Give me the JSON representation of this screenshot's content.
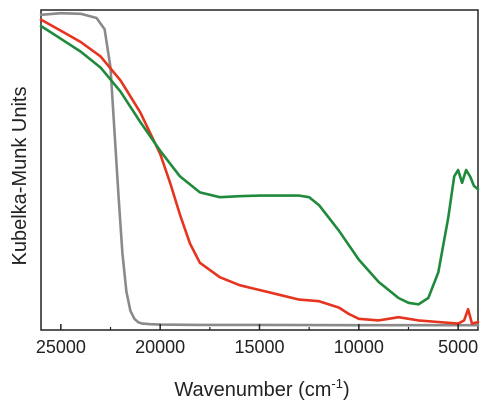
{
  "chart_data": {
    "type": "line",
    "xlabel_main": "Wavenumber (cm",
    "xlabel_sup": "-1",
    "xlabel_close": ")",
    "ylabel": "Kubelka-Munk Units",
    "xlim": [
      26000,
      4000
    ],
    "x_reversed": true,
    "ylim": [
      0,
      1
    ],
    "y_ticks_shown": false,
    "grid": false,
    "x_ticks": [
      {
        "value": 25000,
        "label": "25000"
      },
      {
        "value": 20000,
        "label": "20000"
      },
      {
        "value": 15000,
        "label": "15000"
      },
      {
        "value": 10000,
        "label": "10000"
      },
      {
        "value": 5000,
        "label": "5000"
      }
    ],
    "series": [
      {
        "color": "#8a8a8a",
        "x": [
          26000,
          25000,
          24000,
          23200,
          22800,
          22500,
          22300,
          22100,
          21900,
          21700,
          21500,
          21300,
          21100,
          20900,
          20500,
          20000,
          18000,
          15000,
          10000,
          7000,
          5000,
          4000
        ],
        "y": [
          0.985,
          0.99,
          0.988,
          0.975,
          0.94,
          0.82,
          0.62,
          0.42,
          0.24,
          0.12,
          0.06,
          0.035,
          0.024,
          0.02,
          0.018,
          0.017,
          0.016,
          0.016,
          0.015,
          0.015,
          0.015,
          0.015
        ]
      },
      {
        "color": "#e5341f",
        "x": [
          26000,
          25000,
          24000,
          23000,
          22000,
          21000,
          20000,
          19500,
          19000,
          18500,
          18000,
          17000,
          16000,
          15000,
          14000,
          13000,
          12000,
          11000,
          10500,
          10000,
          9000,
          8000,
          7000,
          6000,
          5000,
          4700,
          4500,
          4300,
          4000
        ],
        "y": [
          0.97,
          0.935,
          0.9,
          0.855,
          0.78,
          0.68,
          0.55,
          0.46,
          0.36,
          0.27,
          0.21,
          0.165,
          0.14,
          0.125,
          0.11,
          0.095,
          0.09,
          0.07,
          0.05,
          0.035,
          0.03,
          0.04,
          0.03,
          0.025,
          0.02,
          0.03,
          0.065,
          0.02,
          0.025
        ]
      },
      {
        "color": "#1f8a3c",
        "x": [
          26000,
          25000,
          24000,
          23000,
          22000,
          21000,
          20000,
          19000,
          18000,
          17000,
          16000,
          15000,
          14000,
          13000,
          12500,
          12000,
          11000,
          10000,
          9000,
          8000,
          7500,
          7000,
          6500,
          6000,
          5500,
          5200,
          5000,
          4800,
          4600,
          4400,
          4200,
          4000
        ],
        "y": [
          0.95,
          0.91,
          0.87,
          0.82,
          0.745,
          0.65,
          0.56,
          0.48,
          0.43,
          0.415,
          0.418,
          0.42,
          0.42,
          0.42,
          0.415,
          0.39,
          0.31,
          0.22,
          0.15,
          0.1,
          0.085,
          0.08,
          0.1,
          0.18,
          0.35,
          0.48,
          0.5,
          0.46,
          0.5,
          0.48,
          0.45,
          0.44
        ]
      }
    ]
  }
}
